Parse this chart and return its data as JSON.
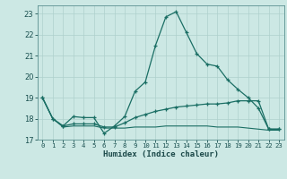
{
  "xlabel": "Humidex (Indice chaleur)",
  "bg_color": "#cce8e4",
  "grid_color": "#aed0cc",
  "line_color": "#1a6e64",
  "xlim": [
    -0.5,
    23.5
  ],
  "ylim": [
    17,
    23.4
  ],
  "yticks": [
    17,
    18,
    19,
    20,
    21,
    22,
    23
  ],
  "xticks": [
    0,
    1,
    2,
    3,
    4,
    5,
    6,
    7,
    8,
    9,
    10,
    11,
    12,
    13,
    14,
    15,
    16,
    17,
    18,
    19,
    20,
    21,
    22,
    23
  ],
  "series1_x": [
    0,
    1,
    2,
    3,
    4,
    5,
    6,
    7,
    8,
    9,
    10,
    11,
    12,
    13,
    14,
    15,
    16,
    17,
    18,
    19,
    20,
    21,
    22,
    23
  ],
  "series1_y": [
    19.0,
    18.0,
    17.65,
    18.1,
    18.05,
    18.05,
    17.3,
    17.65,
    18.1,
    19.3,
    19.75,
    21.5,
    22.85,
    23.1,
    22.1,
    21.1,
    20.6,
    20.5,
    19.85,
    19.4,
    19.0,
    18.5,
    17.5,
    17.5
  ],
  "series2_x": [
    0,
    1,
    2,
    3,
    4,
    5,
    6,
    7,
    8,
    9,
    10,
    11,
    12,
    13,
    14,
    15,
    16,
    17,
    18,
    19,
    20,
    21,
    22,
    23
  ],
  "series2_y": [
    19.0,
    18.0,
    17.65,
    17.75,
    17.75,
    17.75,
    17.6,
    17.6,
    17.8,
    18.05,
    18.2,
    18.35,
    18.45,
    18.55,
    18.6,
    18.65,
    18.7,
    18.7,
    18.75,
    18.85,
    18.85,
    18.85,
    17.5,
    17.5
  ],
  "series3_x": [
    0,
    1,
    2,
    3,
    4,
    5,
    6,
    7,
    8,
    9,
    10,
    11,
    12,
    13,
    14,
    15,
    16,
    17,
    18,
    19,
    20,
    21,
    22,
    23
  ],
  "series3_y": [
    19.0,
    18.0,
    17.6,
    17.65,
    17.65,
    17.65,
    17.55,
    17.55,
    17.55,
    17.6,
    17.6,
    17.6,
    17.65,
    17.65,
    17.65,
    17.65,
    17.65,
    17.6,
    17.6,
    17.6,
    17.55,
    17.5,
    17.45,
    17.45
  ]
}
